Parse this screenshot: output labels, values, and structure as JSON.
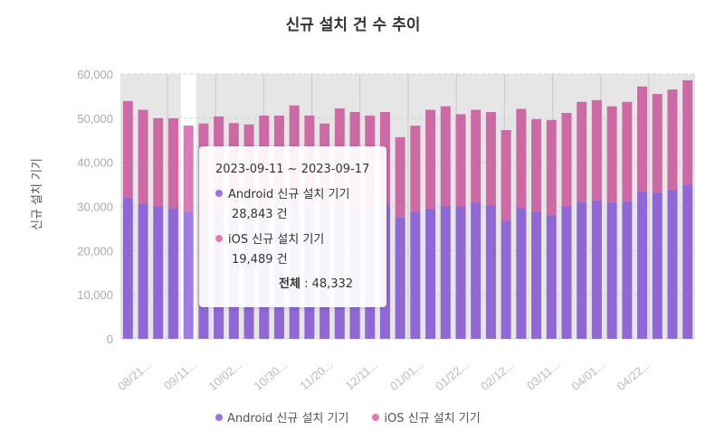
{
  "chart_data": {
    "type": "bar",
    "stacked": true,
    "title": "신규 설치 건 수 추이",
    "ylabel": "신규 설치 기기",
    "xlabel": "",
    "ylim": [
      0,
      60000
    ],
    "yticks": [
      "0",
      "10,000",
      "20,000",
      "30,000",
      "40,000",
      "50,000",
      "60,000"
    ],
    "ytick_values": [
      0,
      10000,
      20000,
      30000,
      40000,
      50000,
      60000
    ],
    "grid": true,
    "legend_placement": "bottom",
    "categories": [
      "",
      "08/21...",
      "",
      "",
      "09/11...",
      "",
      "",
      "10/02...",
      "",
      "",
      "10/30...",
      "",
      "",
      "11/20...",
      "",
      "",
      "12/11...",
      "",
      "",
      "01/01...",
      "",
      "",
      "01/22...",
      "",
      "",
      "02/12...",
      "",
      "",
      "03/11...",
      "",
      "",
      "04/01...",
      "",
      "",
      "04/22...",
      "",
      "",
      ""
    ],
    "highlighted_index": 4,
    "series": [
      {
        "name": "Android 신규 설치 기기",
        "color": "#8f68d4",
        "values": [
          32100,
          30700,
          30000,
          29600,
          28843,
          29500,
          29800,
          29300,
          29200,
          29700,
          29900,
          30500,
          29800,
          29400,
          30200,
          30000,
          29700,
          30400,
          27600,
          28800,
          29500,
          30000,
          30000,
          30900,
          30200,
          26800,
          29600,
          28900,
          28100,
          30000,
          30900,
          31400,
          30900,
          31200,
          33400,
          33200,
          33800,
          35000
        ]
      },
      {
        "name": "iOS 신규 설치 기기",
        "color": "#cc6aa6",
        "values": [
          21800,
          21200,
          20000,
          20400,
          19489,
          19300,
          20600,
          19600,
          19400,
          20900,
          20700,
          22400,
          20800,
          19400,
          22000,
          21400,
          20900,
          21000,
          18100,
          19500,
          22400,
          22700,
          20900,
          21000,
          21200,
          20500,
          22500,
          20900,
          21500,
          21200,
          22800,
          22700,
          21800,
          22500,
          23800,
          22300,
          22700,
          23600
        ]
      }
    ]
  },
  "tooltip": {
    "range": "2023-09-11 ~ 2023-09-17",
    "android_label": "Android 신규 설치 기기",
    "android_value": "28,843 건",
    "ios_label": "iOS 신규 설치 기기",
    "ios_value": "19,489 건",
    "total_label": "전체",
    "total_value": ": 48,332"
  },
  "legend": [
    {
      "label": "Android 신규 설치 기기",
      "color": "#8f68d4"
    },
    {
      "label": "iOS 신규 설치 기기",
      "color": "#cc6aa6"
    }
  ]
}
